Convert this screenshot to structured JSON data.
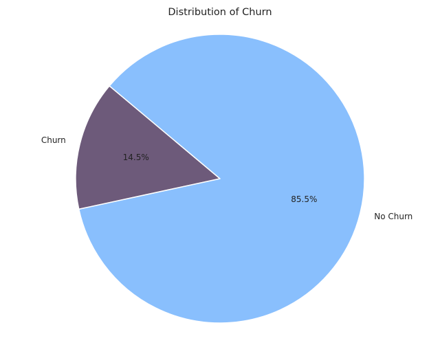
{
  "chart_data": {
    "type": "pie",
    "title": "Distribution of Churn",
    "slices": [
      {
        "label": "Churn",
        "value": 14.5,
        "pct_label": "14.5%",
        "color": "#6d5a7a"
      },
      {
        "label": "No Churn",
        "value": 85.5,
        "pct_label": "85.5%",
        "color": "#89bffd"
      }
    ],
    "start_angle_deg": 140,
    "direction": "counterclockwise",
    "edge_color": "#ffffff"
  }
}
